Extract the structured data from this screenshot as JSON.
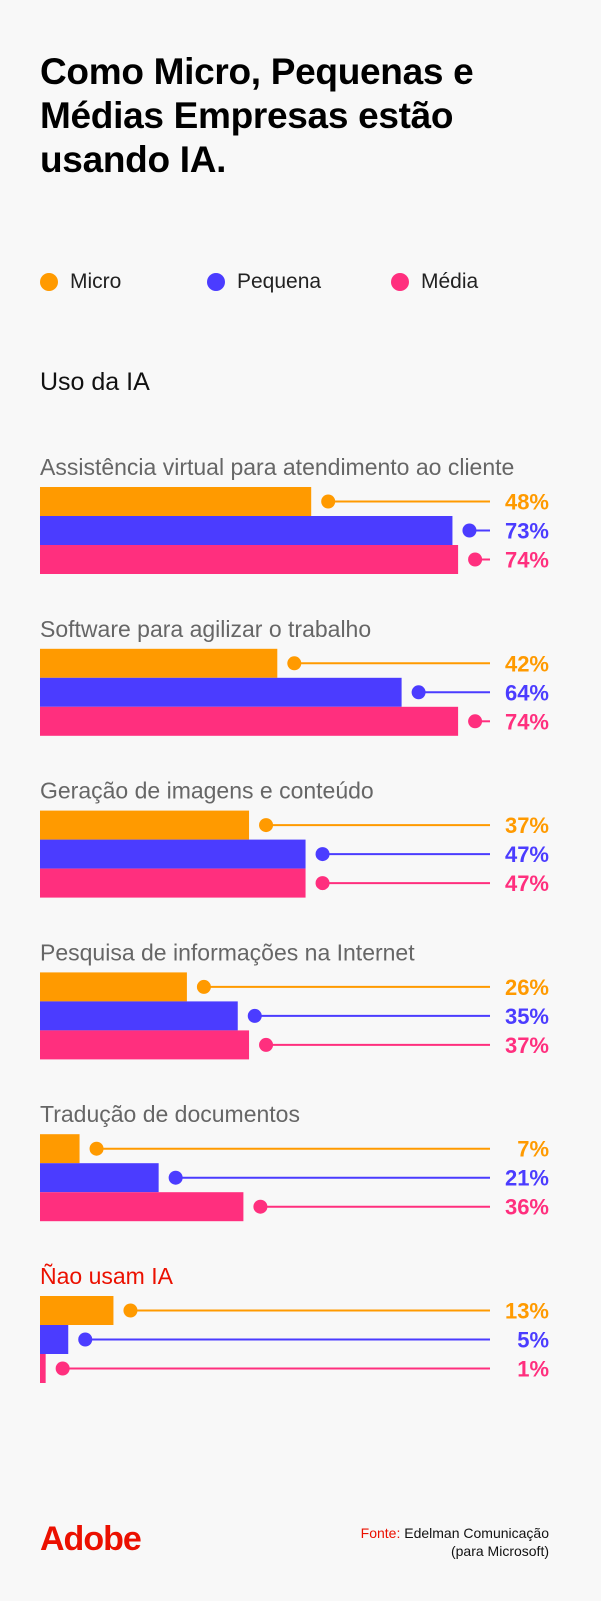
{
  "title": "Como Micro, Pequenas e Médias Empresas estão usando IA.",
  "legend": [
    {
      "label": "Micro",
      "color": "#ff9a00"
    },
    {
      "label": "Pequena",
      "color": "#4b3cff"
    },
    {
      "label": "Média",
      "color": "#ff2f7e"
    }
  ],
  "section_title": "Uso da IA",
  "chart_data": {
    "type": "bar",
    "orientation": "horizontal",
    "xlim": [
      0,
      100
    ],
    "unit": "%",
    "categories": [
      "Assistência virtual para atendimento ao cliente",
      "Software para agilizar o trabalho",
      "Geração de imagens e conteúdo",
      "Pesquisa de informações na Internet",
      "Tradução de documentos",
      "Ñao usam IA"
    ],
    "highlight_category_color": "#eb1000",
    "series": [
      {
        "name": "Micro",
        "color": "#ff9a00",
        "values": [
          48,
          42,
          37,
          26,
          7,
          13
        ]
      },
      {
        "name": "Pequena",
        "color": "#4b3cff",
        "values": [
          73,
          64,
          47,
          35,
          21,
          5
        ]
      },
      {
        "name": "Média",
        "color": "#ff2f7e",
        "values": [
          74,
          74,
          47,
          37,
          36,
          1
        ]
      }
    ]
  },
  "footer": {
    "logo": "Adobe",
    "source_label": "Fonte:",
    "source_line1": "Edelman Comunicação",
    "source_line2": "(para Microsoft)"
  }
}
